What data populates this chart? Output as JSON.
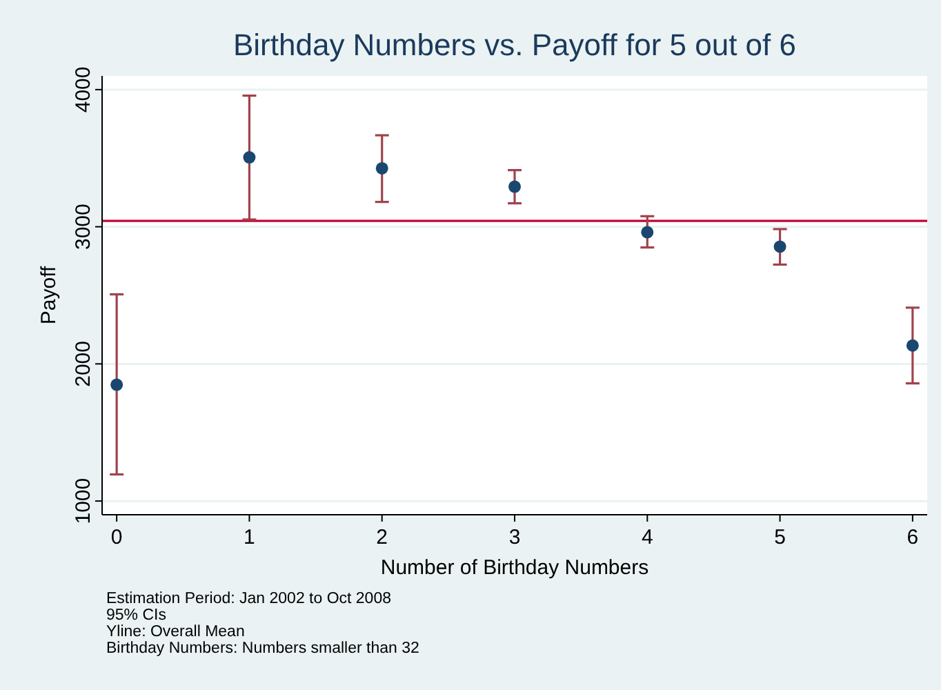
{
  "chart_data": {
    "type": "scatter",
    "title": "Birthday Numbers vs. Payoff for 5 out of 6",
    "xlabel": "Number of Birthday Numbers",
    "ylabel": "Payoff",
    "x": [
      0,
      1,
      2,
      3,
      4,
      5,
      6
    ],
    "series": [
      {
        "color": "#1a476f",
        "values": [
          1848,
          3506,
          3426,
          3292,
          2960,
          2855,
          2134
        ],
        "errors": [
          [
            1194,
            2507
          ],
          [
            3053,
            3956
          ],
          [
            3181,
            3667
          ],
          [
            3171,
            3413
          ],
          [
            2849,
            3077
          ],
          [
            2724,
            2983
          ],
          [
            1858,
            2410
          ]
        ]
      }
    ],
    "xlim": [
      -0.11,
      6.11
    ],
    "xticks": [
      0,
      1,
      2,
      3,
      4,
      5,
      6
    ],
    "ylim": [
      900,
      4100
    ],
    "yticks": [
      1000,
      2000,
      3000,
      4000
    ],
    "grid": "y",
    "marker": "circle",
    "ref_lines": [
      {
        "axis": "y",
        "value": 3043,
        "color": "#c10534"
      }
    ],
    "annotations": [
      "Estimation Period: Jan 2002 to Oct 2008",
      "95% CIs",
      "Yline: Overall Mean",
      "Birthday Numbers: Numbers smaller than 32"
    ]
  }
}
